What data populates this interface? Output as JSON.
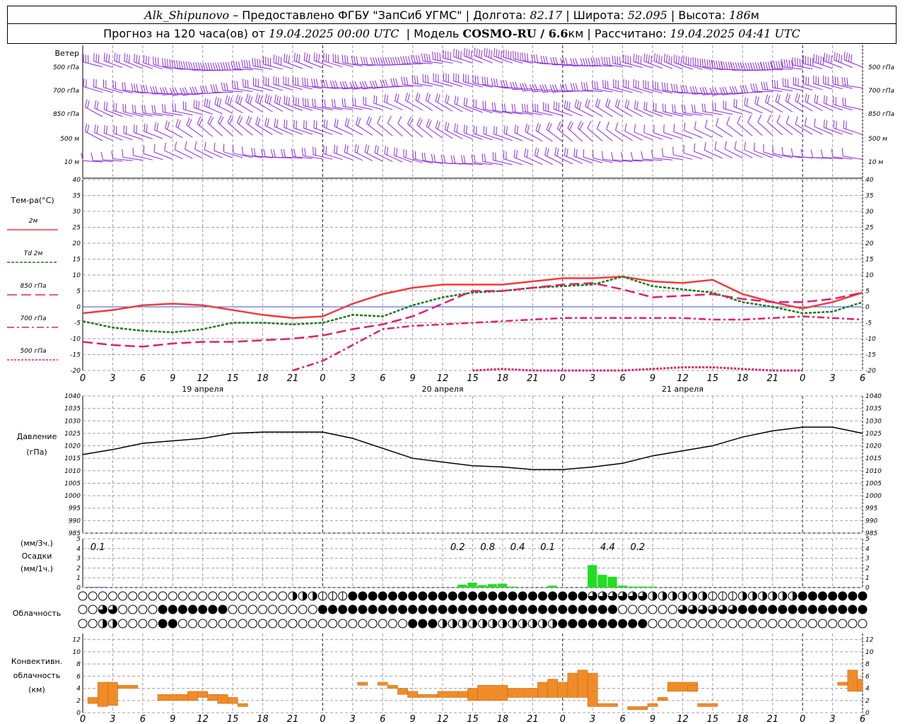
{
  "header": {
    "station": "Alk_Shipunovo",
    "provider": " – Предоставлено ФГБУ \"ЗапСиб УГМС\" | Долгота: ",
    "lon": "82.17",
    "lat_label": " | Широта: ",
    "lat": "52.095",
    "alt_label": " | Высота: ",
    "alt": "186",
    "alt_unit": "м",
    "forecast_label": "Прогноз на 120 часа(ов) от ",
    "forecast_start": "19.04.2025 00:00 UTC",
    "model_label": "  | Модель ",
    "model": "COSMO-RU / 6.6",
    "model_unit": "км",
    "calc_label": " | Рассчитано: ",
    "calc_time": "19.04.2025 04:41 UTC"
  },
  "wind_panel": {
    "title": "Ветер",
    "levels": [
      "500 гПа",
      "700 гПа",
      "850 гПа",
      "500 м",
      "10   м"
    ]
  },
  "temp_panel": {
    "title": "Тем-ра(°C)",
    "legend": [
      {
        "label": "2м",
        "color": "#f03c3c",
        "dash": ""
      },
      {
        "label": "Td  2м",
        "color": "#1a7a1a",
        "dash": "4,2"
      },
      {
        "label": "850 гПа",
        "color": "#e0206a",
        "dash": "14,6"
      },
      {
        "label": "700 гПа",
        "color": "#e0206a",
        "dash": "10,4,3,4"
      },
      {
        "label": "500 гПа",
        "color": "#e0206a",
        "dash": "3,2"
      }
    ],
    "yticks": [
      "40",
      "35",
      "30",
      "25",
      "20",
      "15",
      "10",
      "5",
      "0",
      "-5",
      "-10",
      "-15",
      "-20"
    ]
  },
  "x_axis": {
    "hours": [
      "0",
      "3",
      "6",
      "9",
      "12",
      "15",
      "18",
      "21",
      "0",
      "3",
      "6",
      "9",
      "12",
      "15",
      "18",
      "21",
      "0",
      "3",
      "6",
      "9",
      "12",
      "15",
      "18",
      "21",
      "0",
      "3",
      "6"
    ],
    "days": [
      "19 апреля",
      "20 апреля",
      "21 апреля"
    ]
  },
  "pressure_panel": {
    "title1": "Давление",
    "title2": "(гПа)",
    "yticks": [
      "1040",
      "1035",
      "1030",
      "1025",
      "1020",
      "1015",
      "1010",
      "1005",
      "1000",
      "995",
      "990",
      "985"
    ]
  },
  "precip_panel": {
    "title1": "(мм/3ч.)",
    "title2": "Осадки",
    "title3": "(мм/1ч.)",
    "yticks": [
      "5",
      "4",
      "3",
      "2",
      "1",
      "0"
    ],
    "totals": [
      {
        "h": 1.5,
        "v": "0.1"
      },
      {
        "h": 37.5,
        "v": "0.2"
      },
      {
        "h": 40.5,
        "v": "0.8"
      },
      {
        "h": 43.5,
        "v": "0.4"
      },
      {
        "h": 46.5,
        "v": "0.1"
      },
      {
        "h": 52.5,
        "v": "4.4"
      },
      {
        "h": 55.5,
        "v": "0.2"
      }
    ]
  },
  "cloud_panel": {
    "title": "Облачность"
  },
  "conv_panel": {
    "title1": "Конвективн.",
    "title2": "облачность",
    "title3": "(км)",
    "yticks": [
      "12",
      "10",
      "8",
      "6",
      "4",
      "2",
      "0"
    ]
  },
  "colors": {
    "wind": "#8a2be2",
    "pressure": "#000000",
    "precip_blue": "#1f3fd8",
    "precip_green": "#22dd22",
    "conv": "#f08c28",
    "grid": "#a0a0a0"
  },
  "chart_data": [
    {
      "type": "line",
      "title": "Тем-ра(°C)",
      "x_hours": [
        0,
        3,
        6,
        9,
        12,
        15,
        18,
        21,
        24,
        27,
        30,
        33,
        36,
        39,
        42,
        45,
        48,
        51,
        54,
        57,
        60,
        63,
        66,
        69,
        72,
        75,
        78
      ],
      "ylim": [
        -20,
        40
      ],
      "series": [
        {
          "name": "2м",
          "values": [
            -2,
            -1,
            0.5,
            1,
            0.5,
            -1,
            -2.5,
            -3.5,
            -3,
            1,
            4,
            6,
            7,
            7,
            7,
            8,
            9,
            9,
            9.5,
            8,
            7.5,
            8.5,
            4,
            1.5,
            -0.5,
            1.5,
            4.5
          ]
        },
        {
          "name": "Td 2м",
          "values": [
            -4.5,
            -6.5,
            -7.5,
            -8,
            -7,
            -5,
            -5,
            -5.5,
            -5,
            -2.5,
            -3,
            0.5,
            3,
            4.5,
            5,
            6,
            6.5,
            7,
            9.5,
            6.5,
            5.5,
            4.5,
            1.5,
            0,
            -2,
            -1.5,
            1.5
          ]
        },
        {
          "name": "850 гПа",
          "values": [
            -11,
            -12,
            -12.5,
            -11.5,
            -11,
            -11,
            -10.5,
            -10,
            -9,
            -7,
            -5.5,
            -3,
            1,
            5,
            5,
            6,
            7,
            7.5,
            5.5,
            3,
            3.5,
            4,
            2.5,
            1.5,
            1.5,
            2.5,
            4.5
          ]
        },
        {
          "name": "700 гПа",
          "values": [
            null,
            null,
            null,
            null,
            null,
            null,
            null,
            -20,
            -17,
            -12,
            -7,
            -6,
            -5.5,
            -5,
            -4.5,
            -4,
            -3.5,
            -3.5,
            -3.5,
            -3.5,
            -3.5,
            -4,
            -4,
            -3.5,
            -3,
            -3.5,
            -4
          ]
        },
        {
          "name": "500 гПа",
          "values": [
            null,
            null,
            null,
            null,
            null,
            null,
            null,
            null,
            null,
            null,
            null,
            null,
            null,
            -20,
            -19.5,
            -20,
            -20,
            -20,
            -20,
            -19.5,
            -19,
            -19,
            -19.5,
            -20,
            -20,
            null,
            null
          ]
        }
      ]
    },
    {
      "type": "line",
      "title": "Давление (гПа)",
      "ylim": [
        985,
        1040
      ],
      "x_hours": [
        0,
        3,
        6,
        9,
        12,
        15,
        18,
        21,
        24,
        27,
        30,
        33,
        36,
        39,
        42,
        45,
        48,
        51,
        54,
        57,
        60,
        63,
        66,
        69,
        72,
        75,
        78
      ],
      "series": [
        {
          "name": "pressure",
          "values": [
            1016.5,
            1018.5,
            1021,
            1022,
            1023,
            1025,
            1025.5,
            1025.5,
            1025.5,
            1023,
            1019,
            1015,
            1013.5,
            1012,
            1011.5,
            1010.5,
            1010.5,
            1011.5,
            1013,
            1016,
            1018,
            1020,
            1023.5,
            1026,
            1027.5,
            1027.5,
            1025
          ]
        }
      ]
    },
    {
      "type": "bar",
      "title": "Осадки (мм/1ч.)",
      "ylim": [
        0,
        5
      ],
      "bars_hour_start": [
        1,
        2,
        38,
        39,
        40,
        41,
        42,
        43,
        47,
        51,
        52,
        53,
        54,
        55,
        56,
        57
      ],
      "values": [
        0.05,
        0.05,
        0.3,
        0.5,
        0.25,
        0.35,
        0.4,
        0.1,
        0.2,
        2.3,
        1.3,
        1.1,
        0.2,
        0.1,
        0.1,
        0.1
      ],
      "colors": [
        "blue",
        "blue",
        "green",
        "green",
        "green",
        "green",
        "green",
        "green",
        "green",
        "green",
        "green",
        "green",
        "green",
        "green",
        "green",
        "green"
      ]
    },
    {
      "type": "bar",
      "title": "Конвективн. облачность (км)",
      "ylim": [
        0,
        13
      ],
      "segments": [
        {
          "h0": 0.5,
          "h1": 1.5,
          "bot": 1.5,
          "top": 2.5
        },
        {
          "h0": 1.5,
          "h1": 2.5,
          "bot": 1.0,
          "top": 5.0
        },
        {
          "h0": 2.5,
          "h1": 3.5,
          "bot": 1.2,
          "top": 5.0
        },
        {
          "h0": 3.5,
          "h1": 5.5,
          "bot": 4.0,
          "top": 4.5
        },
        {
          "h0": 7.5,
          "h1": 10.5,
          "bot": 2.0,
          "top": 3.0
        },
        {
          "h0": 10.5,
          "h1": 11.5,
          "bot": 2.0,
          "top": 3.5
        },
        {
          "h0": 11.5,
          "h1": 12.5,
          "bot": 2.5,
          "top": 3.5
        },
        {
          "h0": 12.5,
          "h1": 13.5,
          "bot": 2.0,
          "top": 3.0
        },
        {
          "h0": 13.5,
          "h1": 14.5,
          "bot": 1.5,
          "top": 3.0
        },
        {
          "h0": 14.5,
          "h1": 15.5,
          "bot": 1.5,
          "top": 2.5
        },
        {
          "h0": 15.5,
          "h1": 16.5,
          "bot": 1.0,
          "top": 1.5
        },
        {
          "h0": 27.5,
          "h1": 28.5,
          "bot": 4.5,
          "top": 5.0
        },
        {
          "h0": 29.5,
          "h1": 30.5,
          "bot": 4.5,
          "top": 5.0
        },
        {
          "h0": 30.5,
          "h1": 31.5,
          "bot": 4.0,
          "top": 4.5
        },
        {
          "h0": 31.5,
          "h1": 32.5,
          "bot": 3.0,
          "top": 4.0
        },
        {
          "h0": 32.5,
          "h1": 33.5,
          "bot": 2.5,
          "top": 3.5
        },
        {
          "h0": 33.5,
          "h1": 35.5,
          "bot": 2.5,
          "top": 3.0
        },
        {
          "h0": 35.5,
          "h1": 37.5,
          "bot": 2.5,
          "top": 3.5
        },
        {
          "h0": 37.5,
          "h1": 38.5,
          "bot": 2.5,
          "top": 3.5
        },
        {
          "h0": 38.5,
          "h1": 39.5,
          "bot": 2.0,
          "top": 4.0
        },
        {
          "h0": 39.5,
          "h1": 42.5,
          "bot": 2.0,
          "top": 4.5
        },
        {
          "h0": 42.5,
          "h1": 45.5,
          "bot": 2.5,
          "top": 4.0
        },
        {
          "h0": 45.5,
          "h1": 46.5,
          "bot": 2.5,
          "top": 5.0
        },
        {
          "h0": 46.5,
          "h1": 47.5,
          "bot": 2.5,
          "top": 5.5
        },
        {
          "h0": 47.5,
          "h1": 48.5,
          "bot": 2.5,
          "top": 5.0
        },
        {
          "h0": 48.5,
          "h1": 49.5,
          "bot": 2.5,
          "top": 6.5
        },
        {
          "h0": 49.5,
          "h1": 50.5,
          "bot": 2.5,
          "top": 7.0
        },
        {
          "h0": 50.5,
          "h1": 51.5,
          "bot": 1.0,
          "top": 6.5
        },
        {
          "h0": 51.5,
          "h1": 53.5,
          "bot": 1.0,
          "top": 1.5
        },
        {
          "h0": 54.5,
          "h1": 56.5,
          "bot": 0.5,
          "top": 1.0
        },
        {
          "h0": 56.5,
          "h1": 57.5,
          "bot": 1.0,
          "top": 1.5
        },
        {
          "h0": 57.5,
          "h1": 58.5,
          "bot": 2.0,
          "top": 2.5
        },
        {
          "h0": 58.5,
          "h1": 61.5,
          "bot": 3.5,
          "top": 5.0
        },
        {
          "h0": 60.5,
          "h1": 61.5,
          "bot": 3.5,
          "top": 4.5
        },
        {
          "h0": 61.5,
          "h1": 63.5,
          "bot": 1.0,
          "top": 1.5
        },
        {
          "h0": 75.5,
          "h1": 76.5,
          "bot": 4.5,
          "top": 5.0
        },
        {
          "h0": 76.5,
          "h1": 77.5,
          "bot": 3.5,
          "top": 7.0
        },
        {
          "h0": 77.5,
          "h1": 78,
          "bot": 3.5,
          "top": 5.5
        }
      ]
    }
  ]
}
